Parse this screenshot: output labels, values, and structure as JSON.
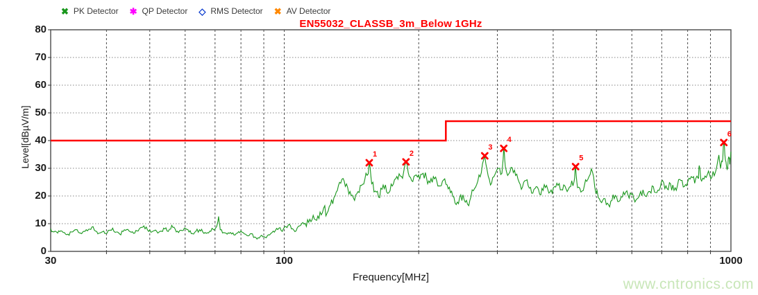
{
  "legend": {
    "items": [
      {
        "label": "PK Detector",
        "symbol": "x-marker",
        "color": "#18961b"
      },
      {
        "label": "QP Detector",
        "symbol": "asterisk-marker",
        "color": "#ff00ff"
      },
      {
        "label": "RMS Detector",
        "symbol": "diamond-marker",
        "color": "#0033cc"
      },
      {
        "label": "AV Detector",
        "symbol": "x-marker",
        "color": "#ff8800"
      }
    ]
  },
  "watermark": {
    "text": "www.cntronics.com",
    "color": "#c8e6b8"
  },
  "chart_data": {
    "type": "line",
    "title": "EN55032_CLASSB_3m_Below 1GHz",
    "title_color": "#ff0000",
    "xlabel": "Frequency[MHz]",
    "ylabel": "Level[dBµV/m]",
    "xscale": "log",
    "xlim": [
      30,
      1000
    ],
    "ylim": [
      0,
      80
    ],
    "yticks": [
      0,
      10,
      20,
      30,
      40,
      50,
      60,
      70,
      80
    ],
    "xtick_labels": [
      {
        "value": 30,
        "label": "30"
      },
      {
        "value": 100,
        "label": "100"
      },
      {
        "value": 1000,
        "label": "1000"
      }
    ],
    "x_gridlines": [
      40,
      50,
      60,
      70,
      80,
      90,
      100,
      200,
      300,
      400,
      500,
      600,
      700,
      800,
      900
    ],
    "y_gridlines": [
      10,
      20,
      30,
      40,
      50,
      60,
      70
    ],
    "grid": "dashed",
    "legend_position": "top-left",
    "noise": {
      "low_amp": 0.7,
      "high_amp": 1.6,
      "split_mhz": 112
    },
    "series": [
      {
        "name": "PK Detector trace",
        "type": "trace",
        "color": "#18961b",
        "points": [
          [
            30,
            8.2
          ],
          [
            30.5,
            7
          ],
          [
            31.1,
            6.6
          ],
          [
            31.6,
            7.4
          ],
          [
            32.2,
            6.8
          ],
          [
            32.8,
            6.2
          ],
          [
            33.4,
            7
          ],
          [
            34,
            7.8
          ],
          [
            34.6,
            6.9
          ],
          [
            35.2,
            6.4
          ],
          [
            35.8,
            7.2
          ],
          [
            36.5,
            8
          ],
          [
            37.1,
            8.8
          ],
          [
            37.8,
            7.3
          ],
          [
            38.5,
            6.6
          ],
          [
            39.2,
            7.1
          ],
          [
            39.9,
            6.5
          ],
          [
            40.6,
            7.6
          ],
          [
            41.3,
            8.4
          ],
          [
            42.1,
            7
          ],
          [
            42.8,
            6.3
          ],
          [
            43.6,
            7.2
          ],
          [
            44.4,
            7.9
          ],
          [
            45.2,
            7.1
          ],
          [
            46,
            6.5
          ],
          [
            46.8,
            7.4
          ],
          [
            47.7,
            8.6
          ],
          [
            48.5,
            9.2
          ],
          [
            49.4,
            7.8
          ],
          [
            50.3,
            6.9
          ],
          [
            51.2,
            7.5
          ],
          [
            52.1,
            6.6
          ],
          [
            53.1,
            7.3
          ],
          [
            54,
            8.1
          ],
          [
            55,
            7.2
          ],
          [
            56,
            9.4
          ],
          [
            57,
            8
          ],
          [
            58,
            6.8
          ],
          [
            59.1,
            7.5
          ],
          [
            60.1,
            8.3
          ],
          [
            61.2,
            7
          ],
          [
            62.3,
            6.4
          ],
          [
            63.4,
            7.2
          ],
          [
            64.6,
            7.8
          ],
          [
            65.7,
            7
          ],
          [
            66.9,
            6.5
          ],
          [
            68.1,
            7.3
          ],
          [
            69.3,
            8
          ],
          [
            70.6,
            9
          ],
          [
            71.3,
            12.6
          ],
          [
            71.9,
            7.8
          ],
          [
            73.2,
            6.8
          ],
          [
            74.5,
            6.2
          ],
          [
            75.8,
            6.8
          ],
          [
            77.2,
            5.9
          ],
          [
            78.6,
            6.6
          ],
          [
            80,
            7.4
          ],
          [
            81.4,
            6.3
          ],
          [
            82.9,
            5.6
          ],
          [
            84.4,
            6.4
          ],
          [
            85.9,
            5.2
          ],
          [
            87.4,
            4.9
          ],
          [
            89,
            5.8
          ],
          [
            90.6,
            5.1
          ],
          [
            92.2,
            6
          ],
          [
            93.9,
            6.8
          ],
          [
            95.6,
            7.6
          ],
          [
            97.3,
            8.4
          ],
          [
            99,
            7.2
          ],
          [
            100.8,
            9
          ],
          [
            102.6,
            9.8
          ],
          [
            104.4,
            8.2
          ],
          [
            106.3,
            7.4
          ],
          [
            108.2,
            9.2
          ],
          [
            110.1,
            10.4
          ],
          [
            112.1,
            9
          ],
          [
            114.1,
            11.6
          ],
          [
            116.1,
            13
          ],
          [
            118.2,
            11.2
          ],
          [
            120.3,
            14.2
          ],
          [
            122.5,
            15.6
          ],
          [
            124.7,
            13.8
          ],
          [
            126.9,
            16.8
          ],
          [
            129.2,
            19.4
          ],
          [
            131.5,
            22
          ],
          [
            133.8,
            24.6
          ],
          [
            136.2,
            25.4
          ],
          [
            138.7,
            23
          ],
          [
            141.2,
            20.2
          ],
          [
            143.7,
            18.4
          ],
          [
            146.3,
            21.6
          ],
          [
            148.9,
            23.8
          ],
          [
            151.5,
            26
          ],
          [
            154.2,
            28
          ],
          [
            155,
            32
          ],
          [
            157,
            24.4
          ],
          [
            159.8,
            21.8
          ],
          [
            162.6,
            19.6
          ],
          [
            165.5,
            22.4
          ],
          [
            168.5,
            24
          ],
          [
            171.5,
            21.2
          ],
          [
            174.5,
            23.6
          ],
          [
            177.6,
            26.2
          ],
          [
            180.8,
            28
          ],
          [
            184,
            26.4
          ],
          [
            187.3,
            32.3
          ],
          [
            190.6,
            27
          ],
          [
            194,
            25.2
          ],
          [
            197.5,
            27.6
          ],
          [
            201,
            26
          ],
          [
            204.6,
            28.2
          ],
          [
            208.2,
            26.6
          ],
          [
            211.9,
            24.8
          ],
          [
            215.7,
            27
          ],
          [
            219.5,
            25.4
          ],
          [
            223.4,
            23.6
          ],
          [
            227.4,
            25.8
          ],
          [
            231.5,
            24
          ],
          [
            235.6,
            21.2
          ],
          [
            239.8,
            19.6
          ],
          [
            244.1,
            17.8
          ],
          [
            248.4,
            20.4
          ],
          [
            252.8,
            18.6
          ],
          [
            257.3,
            17
          ],
          [
            261.9,
            19.8
          ],
          [
            266.6,
            22.6
          ],
          [
            271.3,
            25.4
          ],
          [
            276.2,
            28.4
          ],
          [
            281.1,
            34.5
          ],
          [
            286.1,
            27.2
          ],
          [
            291.2,
            24.6
          ],
          [
            296.4,
            27.8
          ],
          [
            301.7,
            30
          ],
          [
            307.1,
            28.2
          ],
          [
            310,
            37.2
          ],
          [
            312.6,
            30.6
          ],
          [
            318.2,
            28
          ],
          [
            323.8,
            30.2
          ],
          [
            329.6,
            27.4
          ],
          [
            335.5,
            25
          ],
          [
            341.5,
            23.2
          ],
          [
            347.6,
            25.6
          ],
          [
            353.8,
            22.8
          ],
          [
            360.1,
            21
          ],
          [
            366.6,
            23.4
          ],
          [
            373.1,
            20.6
          ],
          [
            379.8,
            22
          ],
          [
            386.6,
            23.8
          ],
          [
            393.5,
            21.4
          ],
          [
            400.5,
            23
          ],
          [
            407.7,
            24.6
          ],
          [
            415,
            22.2
          ],
          [
            422.4,
            24
          ],
          [
            430,
            21.6
          ],
          [
            437.7,
            23.4
          ],
          [
            445.5,
            25.2
          ],
          [
            449,
            30.6
          ],
          [
            453.5,
            23
          ],
          [
            461.6,
            21.4
          ],
          [
            469.9,
            23.8
          ],
          [
            478.3,
            26
          ],
          [
            486.9,
            29.8
          ],
          [
            495.6,
            23.2
          ],
          [
            504.5,
            19.4
          ],
          [
            513.5,
            17.6
          ],
          [
            522.7,
            19
          ],
          [
            532.1,
            16.8
          ],
          [
            541.6,
            18.4
          ],
          [
            551.3,
            20.2
          ],
          [
            561.2,
            18
          ],
          [
            571.2,
            19.6
          ],
          [
            581.5,
            21.4
          ],
          [
            591.9,
            19.2
          ],
          [
            602.5,
            20.8
          ],
          [
            613.3,
            18.6
          ],
          [
            624.3,
            20.4
          ],
          [
            635.5,
            22.2
          ],
          [
            646.9,
            19.8
          ],
          [
            658.5,
            21.6
          ],
          [
            670.3,
            23.4
          ],
          [
            682.3,
            21.2
          ],
          [
            694.5,
            23
          ],
          [
            707,
            24.8
          ],
          [
            719.7,
            22.6
          ],
          [
            732.6,
            24.4
          ],
          [
            745.7,
            22
          ],
          [
            759.1,
            23.8
          ],
          [
            772.7,
            25.6
          ],
          [
            786.6,
            23.4
          ],
          [
            800.7,
            25.2
          ],
          [
            815.1,
            27
          ],
          [
            829.7,
            24.6
          ],
          [
            844.6,
            26.4
          ],
          [
            849,
            31
          ],
          [
            859.8,
            25.4
          ],
          [
            875.2,
            27.2
          ],
          [
            890.9,
            29
          ],
          [
            906.9,
            26.8
          ],
          [
            923.2,
            28.6
          ],
          [
            939.8,
            34.8
          ],
          [
            948,
            30
          ],
          [
            956.5,
            32.4
          ],
          [
            964,
            39.3
          ],
          [
            972,
            33
          ],
          [
            980.5,
            29.6
          ],
          [
            989.1,
            34.2
          ],
          [
            994,
            31.4
          ],
          [
            1000,
            36
          ]
        ]
      },
      {
        "name": "EN55032 Class B 3m limit",
        "type": "limit",
        "color": "#ff0000",
        "points": [
          [
            30,
            40
          ],
          [
            230,
            40
          ],
          [
            230,
            47
          ],
          [
            1000,
            47
          ]
        ]
      }
    ],
    "peak_markers": {
      "color": "#ff0000",
      "items": [
        {
          "n": "1",
          "freq": 155,
          "level": 32.0
        },
        {
          "n": "2",
          "freq": 187.3,
          "level": 32.3
        },
        {
          "n": "3",
          "freq": 281.1,
          "level": 34.5
        },
        {
          "n": "4",
          "freq": 310,
          "level": 37.2
        },
        {
          "n": "5",
          "freq": 449,
          "level": 30.6
        },
        {
          "n": "6",
          "freq": 964,
          "level": 39.3
        }
      ]
    }
  }
}
